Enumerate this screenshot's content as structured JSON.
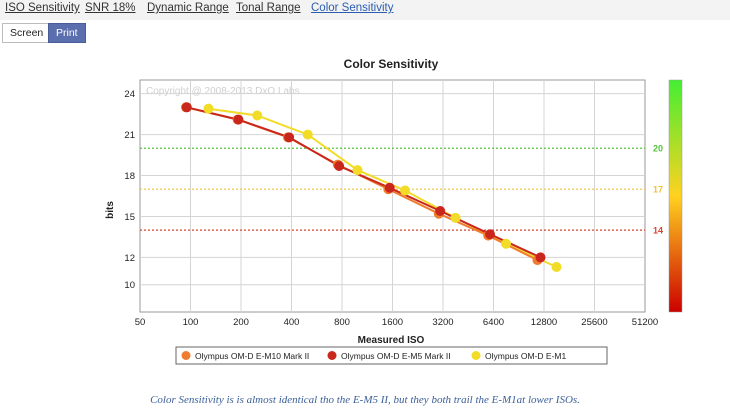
{
  "nav": {
    "tabs": [
      {
        "label": "ISO Sensitivity",
        "active": false
      },
      {
        "label": "SNR 18%",
        "active": false
      },
      {
        "label": "Dynamic Range",
        "active": false
      },
      {
        "label": "Tonal Range",
        "active": false
      },
      {
        "label": "Color Sensitivity",
        "active": true
      }
    ]
  },
  "view_buttons": {
    "screen_label": "Screen",
    "print_label": "Print",
    "selected": "Print"
  },
  "chart_data": {
    "type": "line",
    "title": "Color Sensitivity",
    "watermark": "Copyright @ 2008-2013 DxO Labs",
    "xlabel": "Measured ISO",
    "ylabel": "bits",
    "x_scale": "log2",
    "xlim": [
      50,
      51200
    ],
    "ylim": [
      8,
      25
    ],
    "x_ticks": [
      "50",
      "100",
      "200",
      "400",
      "800",
      "1600",
      "3200",
      "6400",
      "12800",
      "25600",
      "51200"
    ],
    "y_ticks": [
      "10",
      "12",
      "15",
      "18",
      "21",
      "24"
    ],
    "grid": true,
    "reference_lines": [
      {
        "value": 20,
        "label": "20",
        "color": "#55c23a"
      },
      {
        "value": 17,
        "label": "17",
        "color": "#f0c23a"
      },
      {
        "value": 14,
        "label": "14",
        "color": "#d9432e"
      }
    ],
    "color_scale": {
      "top_color": "#44ee33",
      "mid_color": "#ffd21f",
      "bottom_color": "#cc0000"
    },
    "series": [
      {
        "name": "Olympus OM-D E-M10 Mark II",
        "color": "#f07d2f",
        "points": [
          {
            "x": 94,
            "y": 23.0
          },
          {
            "x": 191,
            "y": 22.1
          },
          {
            "x": 381,
            "y": 20.8
          },
          {
            "x": 755,
            "y": 18.8
          },
          {
            "x": 1510,
            "y": 17.0
          },
          {
            "x": 3020,
            "y": 15.2
          },
          {
            "x": 5950,
            "y": 13.6
          },
          {
            "x": 11700,
            "y": 11.8
          }
        ]
      },
      {
        "name": "Olympus OM-D E-M5 Mark II",
        "color": "#c9271c",
        "points": [
          {
            "x": 95,
            "y": 23.0
          },
          {
            "x": 193,
            "y": 22.1
          },
          {
            "x": 387,
            "y": 20.8
          },
          {
            "x": 769,
            "y": 18.7
          },
          {
            "x": 1540,
            "y": 17.1
          },
          {
            "x": 3080,
            "y": 15.4
          },
          {
            "x": 6100,
            "y": 13.7
          },
          {
            "x": 12200,
            "y": 12.0
          }
        ]
      },
      {
        "name": "Olympus OM-D E-M1",
        "color": "#f2dc28",
        "points": [
          {
            "x": 128,
            "y": 22.9
          },
          {
            "x": 250,
            "y": 22.4
          },
          {
            "x": 500,
            "y": 21.0
          },
          {
            "x": 990,
            "y": 18.4
          },
          {
            "x": 1900,
            "y": 16.9
          },
          {
            "x": 3800,
            "y": 14.9
          },
          {
            "x": 7600,
            "y": 13.0
          },
          {
            "x": 15200,
            "y": 11.3
          }
        ]
      }
    ],
    "legend_position": "bottom"
  },
  "caption": "Color Sensitivity is is almost identical tho the E-M5 II, but they both trail the E-M1at lower ISOs."
}
